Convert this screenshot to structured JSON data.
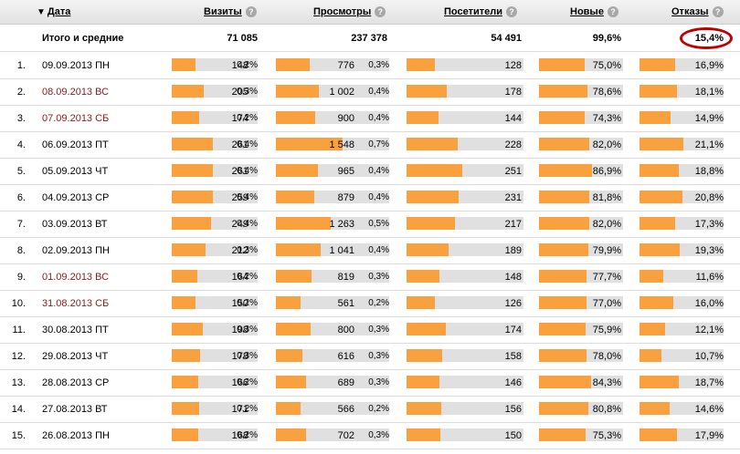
{
  "columns": {
    "date": "Дата",
    "visits": "Визиты",
    "views": "Просмотры",
    "visitors": "Посетители",
    "new": "Новые",
    "bounce": "Отказы",
    "help_glyph": "?",
    "sort_glyph": "▼"
  },
  "totals": {
    "label": "Итого и средние",
    "visits": "71 085",
    "views": "237 378",
    "visitors": "54 491",
    "new": "99,6%",
    "bounce": "15,4%"
  },
  "bar_color": "#f9a03f",
  "weekend_color": "#8b1a1a",
  "highlight_color": "#c00000",
  "rows": [
    {
      "n": "1.",
      "date": "09.09.2013 ПН",
      "weekend": false,
      "visits": "148",
      "visits_pct": "0,2%",
      "views": "776",
      "views_pct": "0,3%",
      "visitors": "128",
      "new": "75,0%",
      "bounce": "16,9%",
      "visits_v": 148,
      "views_v": 776,
      "visitors_v": 128,
      "new_v": 75.0,
      "bounce_v": 16.9
    },
    {
      "n": "2.",
      "date": "08.09.2013 ВС",
      "weekend": true,
      "visits": "205",
      "visits_pct": "0,3%",
      "views": "1 002",
      "views_pct": "0,4%",
      "visitors": "178",
      "new": "78,6%",
      "bounce": "18,1%",
      "visits_v": 205,
      "views_v": 1002,
      "visitors_v": 178,
      "new_v": 78.6,
      "bounce_v": 18.1
    },
    {
      "n": "3.",
      "date": "07.09.2013 СБ",
      "weekend": true,
      "visits": "174",
      "visits_pct": "0,2%",
      "views": "900",
      "views_pct": "0,4%",
      "visitors": "144",
      "new": "74,3%",
      "bounce": "14,9%",
      "visits_v": 174,
      "views_v": 900,
      "visitors_v": 144,
      "new_v": 74.3,
      "bounce_v": 14.9
    },
    {
      "n": "4.",
      "date": "06.09.2013 ПТ",
      "weekend": false,
      "visits": "261",
      "visits_pct": "0,4%",
      "views": "1 548",
      "views_pct": "0,7%",
      "visitors": "228",
      "new": "82,0%",
      "bounce": "21,1%",
      "visits_v": 261,
      "views_v": 1548,
      "visitors_v": 228,
      "new_v": 82.0,
      "bounce_v": 21.1
    },
    {
      "n": "5.",
      "date": "05.09.2013 ЧТ",
      "weekend": false,
      "visits": "261",
      "visits_pct": "0,4%",
      "views": "965",
      "views_pct": "0,4%",
      "visitors": "251",
      "new": "86,9%",
      "bounce": "18,8%",
      "visits_v": 261,
      "views_v": 965,
      "visitors_v": 251,
      "new_v": 86.9,
      "bounce_v": 18.8
    },
    {
      "n": "6.",
      "date": "04.09.2013 СР",
      "weekend": false,
      "visits": "259",
      "visits_pct": "0,4%",
      "views": "879",
      "views_pct": "0,4%",
      "visitors": "231",
      "new": "81,8%",
      "bounce": "20,8%",
      "visits_v": 259,
      "views_v": 879,
      "visitors_v": 231,
      "new_v": 81.8,
      "bounce_v": 20.8
    },
    {
      "n": "7.",
      "date": "03.09.2013 ВТ",
      "weekend": false,
      "visits": "249",
      "visits_pct": "0,4%",
      "views": "1 263",
      "views_pct": "0,5%",
      "visitors": "217",
      "new": "82,0%",
      "bounce": "17,3%",
      "visits_v": 249,
      "views_v": 1263,
      "visitors_v": 217,
      "new_v": 82.0,
      "bounce_v": 17.3
    },
    {
      "n": "8.",
      "date": "02.09.2013 ПН",
      "weekend": false,
      "visits": "212",
      "visits_pct": "0,3%",
      "views": "1 041",
      "views_pct": "0,4%",
      "visitors": "189",
      "new": "79,9%",
      "bounce": "19,3%",
      "visits_v": 212,
      "views_v": 1041,
      "visitors_v": 189,
      "new_v": 79.9,
      "bounce_v": 19.3
    },
    {
      "n": "9.",
      "date": "01.09.2013 ВС",
      "weekend": true,
      "visits": "164",
      "visits_pct": "0,2%",
      "views": "819",
      "views_pct": "0,3%",
      "visitors": "148",
      "new": "77,7%",
      "bounce": "11,6%",
      "visits_v": 164,
      "views_v": 819,
      "visitors_v": 148,
      "new_v": 77.7,
      "bounce_v": 11.6
    },
    {
      "n": "10.",
      "date": "31.08.2013 СБ",
      "weekend": true,
      "visits": "150",
      "visits_pct": "0,2%",
      "views": "561",
      "views_pct": "0,2%",
      "visitors": "126",
      "new": "77,0%",
      "bounce": "16,0%",
      "visits_v": 150,
      "views_v": 561,
      "visitors_v": 126,
      "new_v": 77.0,
      "bounce_v": 16.0
    },
    {
      "n": "11.",
      "date": "30.08.2013 ПТ",
      "weekend": false,
      "visits": "198",
      "visits_pct": "0,3%",
      "views": "800",
      "views_pct": "0,3%",
      "visitors": "174",
      "new": "75,9%",
      "bounce": "12,1%",
      "visits_v": 198,
      "views_v": 800,
      "visitors_v": 174,
      "new_v": 75.9,
      "bounce_v": 12.1
    },
    {
      "n": "12.",
      "date": "29.08.2013 ЧТ",
      "weekend": false,
      "visits": "178",
      "visits_pct": "0,3%",
      "views": "616",
      "views_pct": "0,3%",
      "visitors": "158",
      "new": "78,0%",
      "bounce": "10,7%",
      "visits_v": 178,
      "views_v": 616,
      "visitors_v": 158,
      "new_v": 78.0,
      "bounce_v": 10.7
    },
    {
      "n": "13.",
      "date": "28.08.2013 СР",
      "weekend": false,
      "visits": "166",
      "visits_pct": "0,2%",
      "views": "689",
      "views_pct": "0,3%",
      "visitors": "146",
      "new": "84,3%",
      "bounce": "18,7%",
      "visits_v": 166,
      "views_v": 689,
      "visitors_v": 146,
      "new_v": 84.3,
      "bounce_v": 18.7
    },
    {
      "n": "14.",
      "date": "27.08.2013 ВТ",
      "weekend": false,
      "visits": "171",
      "visits_pct": "0,2%",
      "views": "566",
      "views_pct": "0,2%",
      "visitors": "156",
      "new": "80,8%",
      "bounce": "14,6%",
      "visits_v": 171,
      "views_v": 566,
      "visitors_v": 156,
      "new_v": 80.8,
      "bounce_v": 14.6
    },
    {
      "n": "15.",
      "date": "26.08.2013 ПН",
      "weekend": false,
      "visits": "168",
      "visits_pct": "0,2%",
      "views": "702",
      "views_pct": "0,3%",
      "visitors": "150",
      "new": "75,3%",
      "bounce": "17,9%",
      "visits_v": 168,
      "views_v": 702,
      "visitors_v": 150,
      "new_v": 75.3,
      "bounce_v": 17.9
    }
  ]
}
